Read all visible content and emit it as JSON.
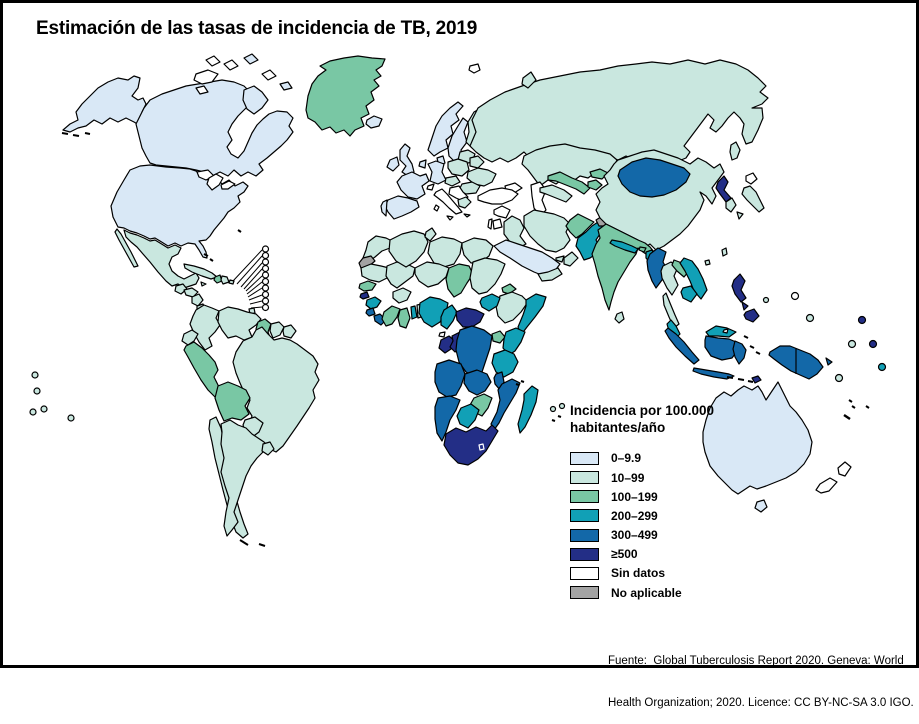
{
  "title": "Estimación de las tasas de incidencia de TB, 2019",
  "legend": {
    "title_line1": "Incidencia por 100.000",
    "title_line2": "habitantes/año",
    "items": [
      {
        "key": "0-9.9",
        "label": "0–9.9",
        "color": "#d9e8f6"
      },
      {
        "key": "10-99",
        "label": "10–99",
        "color": "#c9e7df"
      },
      {
        "key": "100-199",
        "label": "100–199",
        "color": "#79c7a4"
      },
      {
        "key": "200-299",
        "label": "200–299",
        "color": "#11a0b6"
      },
      {
        "key": "300-499",
        "label": "300–499",
        "color": "#1368a8"
      },
      {
        "key": ">=500",
        "label": "≥500",
        "color": "#232e86"
      },
      {
        "key": "sin-datos",
        "label": "Sin datos",
        "color": "#ffffff"
      },
      {
        "key": "no-aplicable",
        "label": "No aplicable",
        "color": "#a3a3a3"
      }
    ]
  },
  "source_note": {
    "line1": "Fuente:  Global Tuberculosis Report 2020. Geneva: World",
    "line2": "Health Organization; 2020. Licence: CC BY-NC-SA 3.0 IGO."
  },
  "map": {
    "stroke_color": "#000000",
    "regions": {
      "alaska": "0-9.9",
      "canada": "0-9.9",
      "usa": "0-9.9",
      "arctic-island-1": "sin-datos",
      "arctic-island-2": "sin-datos",
      "arctic-island-3": "0-9.9",
      "arctic-island-4": "sin-datos",
      "arctic-island-5": "0-9.9",
      "arctic-island-6": "sin-datos",
      "baffin-island": "0-9.9",
      "victoria-island": "sin-datos",
      "greenland": "100-199",
      "iceland": "0-9.9",
      "mexico": "10-99",
      "baja-california": "10-99",
      "guatemala": "10-99",
      "honduras": "10-99",
      "nicaragua": "10-99",
      "costa-rica": "10-99",
      "panama": "10-99",
      "cuba": "10-99",
      "jamaica": "10-99",
      "haiti": "100-199",
      "dominican-republic": "10-99",
      "puerto-rico": "10-99",
      "bahamas": "10-99",
      "bermuda": "10-99",
      "trinidad": "10-99",
      "colombia": "10-99",
      "venezuela": "10-99",
      "guyana": "100-199",
      "suriname": "10-99",
      "french-guiana": "10-99",
      "ecuador": "10-99",
      "peru": "100-199",
      "brazil": "10-99",
      "bolivia": "100-199",
      "paraguay": "10-99",
      "chile": "10-99",
      "argentina": "10-99",
      "uruguay": "10-99",
      "falkland-islands": "10-99",
      "norway": "0-9.9",
      "sweden": "0-9.9",
      "finland": "10-99",
      "denmark": "0-9.9",
      "uk": "0-9.9",
      "ireland": "0-9.9",
      "germany": "0-9.9",
      "france": "0-9.9",
      "spain": "0-9.9",
      "portugal": "0-9.9",
      "italy": "sin-datos",
      "switzerland": "sin-datos",
      "benelux": "0-9.9",
      "central-europe": "10-99",
      "poland": "10-99",
      "baltics": "10-99",
      "belarus": "10-99",
      "ukraine": "10-99",
      "romania": "10-99",
      "balkans": "sin-datos",
      "greece": "10-99",
      "turkey": "sin-datos",
      "russia": "10-99",
      "svalbard": "sin-datos",
      "novaya-zemlya": "10-99",
      "morocco": "10-99",
      "western-sahara": "no-aplicable",
      "algeria": "10-99",
      "tunisia": "10-99",
      "libya": "10-99",
      "egypt": "10-99",
      "mauritania": "10-99",
      "mali": "10-99",
      "senegal": "100-199",
      "guinea-bissau": ">=500",
      "guinea": "200-299",
      "sierra-leone": "300-499",
      "liberia": "300-499",
      "cote-divoire": "100-199",
      "ghana": "100-199",
      "togo": "200-299",
      "benin": "10-99",
      "burkina-faso": "10-99",
      "niger": "10-99",
      "nigeria": "200-299",
      "chad": "100-199",
      "sudan": "10-99",
      "eritrea": "100-199",
      "djibouti": "200-299",
      "ethiopia": "10-99",
      "somalia": "200-299",
      "south-sudan": "200-299",
      "cameroon": "200-299",
      "central-african-republic": ">=500",
      "equatorial-guinea": "sin-datos",
      "gabon": ">=500",
      "congo": ">=500",
      "drc": "300-499",
      "uganda": "100-199",
      "kenya": "200-299",
      "tanzania": "200-299",
      "angola": "300-499",
      "zambia": "300-499",
      "malawi": "300-499",
      "mozambique": "300-499",
      "zimbabwe": "100-199",
      "botswana": "200-299",
      "namibia": "300-499",
      "south-africa": ">=500",
      "lesotho": ">=500",
      "eswatini": ">=500",
      "madagascar": "200-299",
      "comoros": "200-299",
      "mauritius": "200-299",
      "syria": "sin-datos",
      "israel": "sin-datos",
      "jordan": "sin-datos",
      "iraq": "10-99",
      "saudi-arabia": "0-9.9",
      "yemen": "10-99",
      "oman": "10-99",
      "uae": "10-99",
      "iran": "10-99",
      "afghanistan": "100-199",
      "pakistan": "200-299",
      "kashmir": "no-aplicable",
      "india": "100-199",
      "nepal": "200-299",
      "bhutan": "100-199",
      "bangladesh": "200-299",
      "sri-lanka": "10-99",
      "kazakhstan": "10-99",
      "uzbekistan": "100-199",
      "turkmenistan": "10-99",
      "kyrgyzstan": "100-199",
      "tajikistan": "100-199",
      "caucasus": "sin-datos",
      "china": "10-99",
      "mongolia": "300-499",
      "north-korea": ">=500",
      "south-korea": "10-99",
      "japan-hokkaido": "sin-datos",
      "japan-honshu": "10-99",
      "sakhalin": "10-99",
      "taiwan": "10-99",
      "hainan": "10-99",
      "myanmar": "300-499",
      "thailand": "10-99",
      "thai-peninsula": "10-99",
      "laos": "100-199",
      "vietnam": "200-299",
      "cambodia": "200-299",
      "malaysia": "200-299",
      "malaysia-borneo": "200-299",
      "brunei": "sin-datos",
      "sumatra": "300-499",
      "kalimantan": "300-499",
      "java": "300-499",
      "sulawesi": "300-499",
      "lesser-sunda": "300-499",
      "maluku": "300-499",
      "timor-leste": ">=500",
      "philippines-luzon": ">=500",
      "philippines-visayas": ">=500",
      "philippines-mindanao": ">=500",
      "new-guinea": "300-499",
      "new-britain": "300-499",
      "australia": "0-9.9",
      "tasmania": "0-9.9",
      "new-zealand-north": "sin-datos",
      "new-zealand-south": "sin-datos",
      "pacific-dot-1": "sin-datos",
      "pacific-dot-2": "10-99",
      "pacific-dot-3": ">=500",
      "pacific-dot-4": "10-99",
      "pacific-dot-5": ">=500",
      "pacific-dot-6": "200-299",
      "pacific-dot-7": "10-99",
      "pacific-dot-8": "10-99",
      "vanuatu": "10-99",
      "new-caledonia": "10-99",
      "fiji": "10-99",
      "polynesia-dot-1": "10-99",
      "polynesia-dot-2": "10-99",
      "polynesia-dot-3": "10-99",
      "polynesia-dot-4": "10-99",
      "polynesia-dot-5": "10-99",
      "caribbean-dot-1": "sin-datos",
      "caribbean-dot-2": "sin-datos",
      "caribbean-dot-3": "sin-datos",
      "caribbean-dot-4": "sin-datos",
      "caribbean-dot-5": "sin-datos",
      "caribbean-dot-6": "sin-datos",
      "caribbean-dot-7": "sin-datos",
      "caribbean-dot-8": "sin-datos",
      "caribbean-dot-9": "sin-datos",
      "caribbean-dot-10": "sin-datos",
      "atlantic-dot-1": "10-99",
      "atlantic-dot-2": "10-99"
    }
  }
}
